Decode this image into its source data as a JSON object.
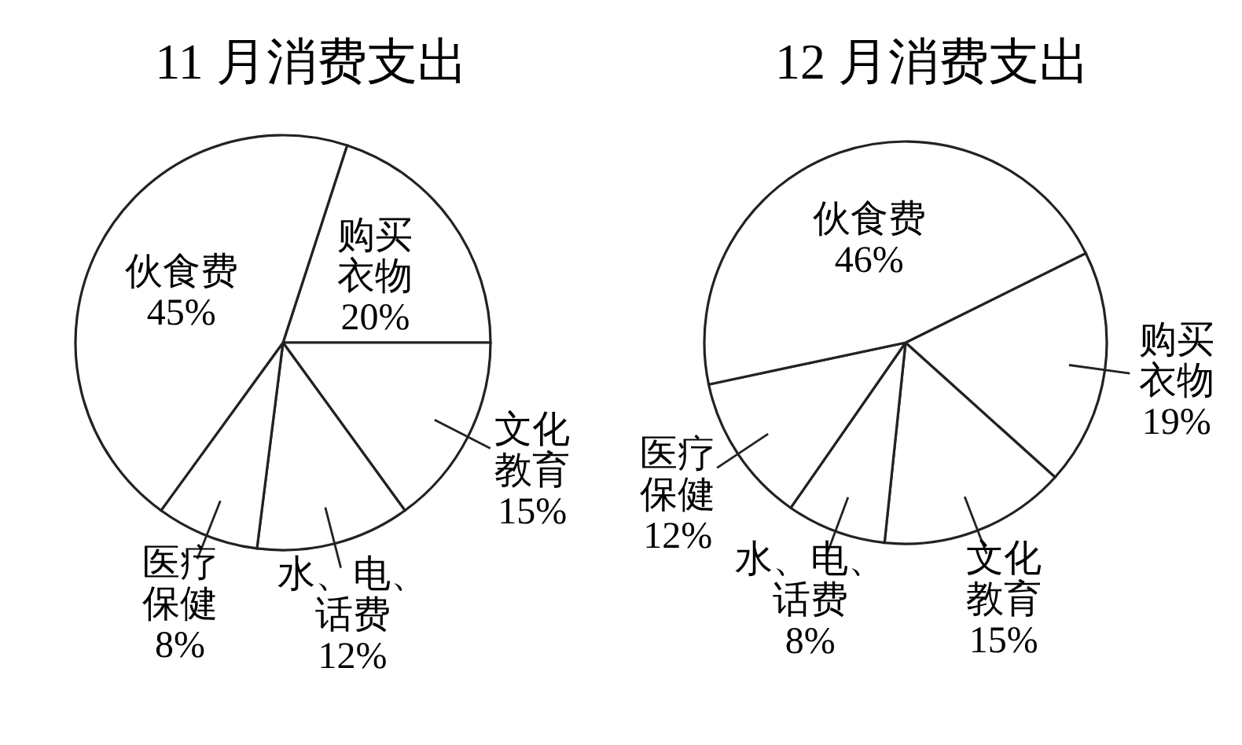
{
  "chart_data": [
    {
      "type": "pie",
      "title": "11 月消费支出",
      "categories": [
        "购买衣物",
        "文化教育",
        "水、电、话费",
        "医疗保健",
        "伙食费"
      ],
      "values": [
        20,
        15,
        12,
        8,
        45
      ],
      "value_labels": [
        "20%",
        "15%",
        "12%",
        "8%",
        "45%"
      ],
      "colors": [
        "#ffffff",
        "#ffffff",
        "#ffffff",
        "#ffffff",
        "#ffffff"
      ]
    },
    {
      "type": "pie",
      "title": "12 月消费支出",
      "categories": [
        "购买衣物",
        "文化教育",
        "水、电、话费",
        "医疗保健",
        "伙食费"
      ],
      "values": [
        19,
        15,
        8,
        12,
        46
      ],
      "value_labels": [
        "19%",
        "15%",
        "8%",
        "12%",
        "46%"
      ],
      "colors": [
        "#ffffff",
        "#ffffff",
        "#ffffff",
        "#ffffff",
        "#ffffff"
      ]
    }
  ]
}
